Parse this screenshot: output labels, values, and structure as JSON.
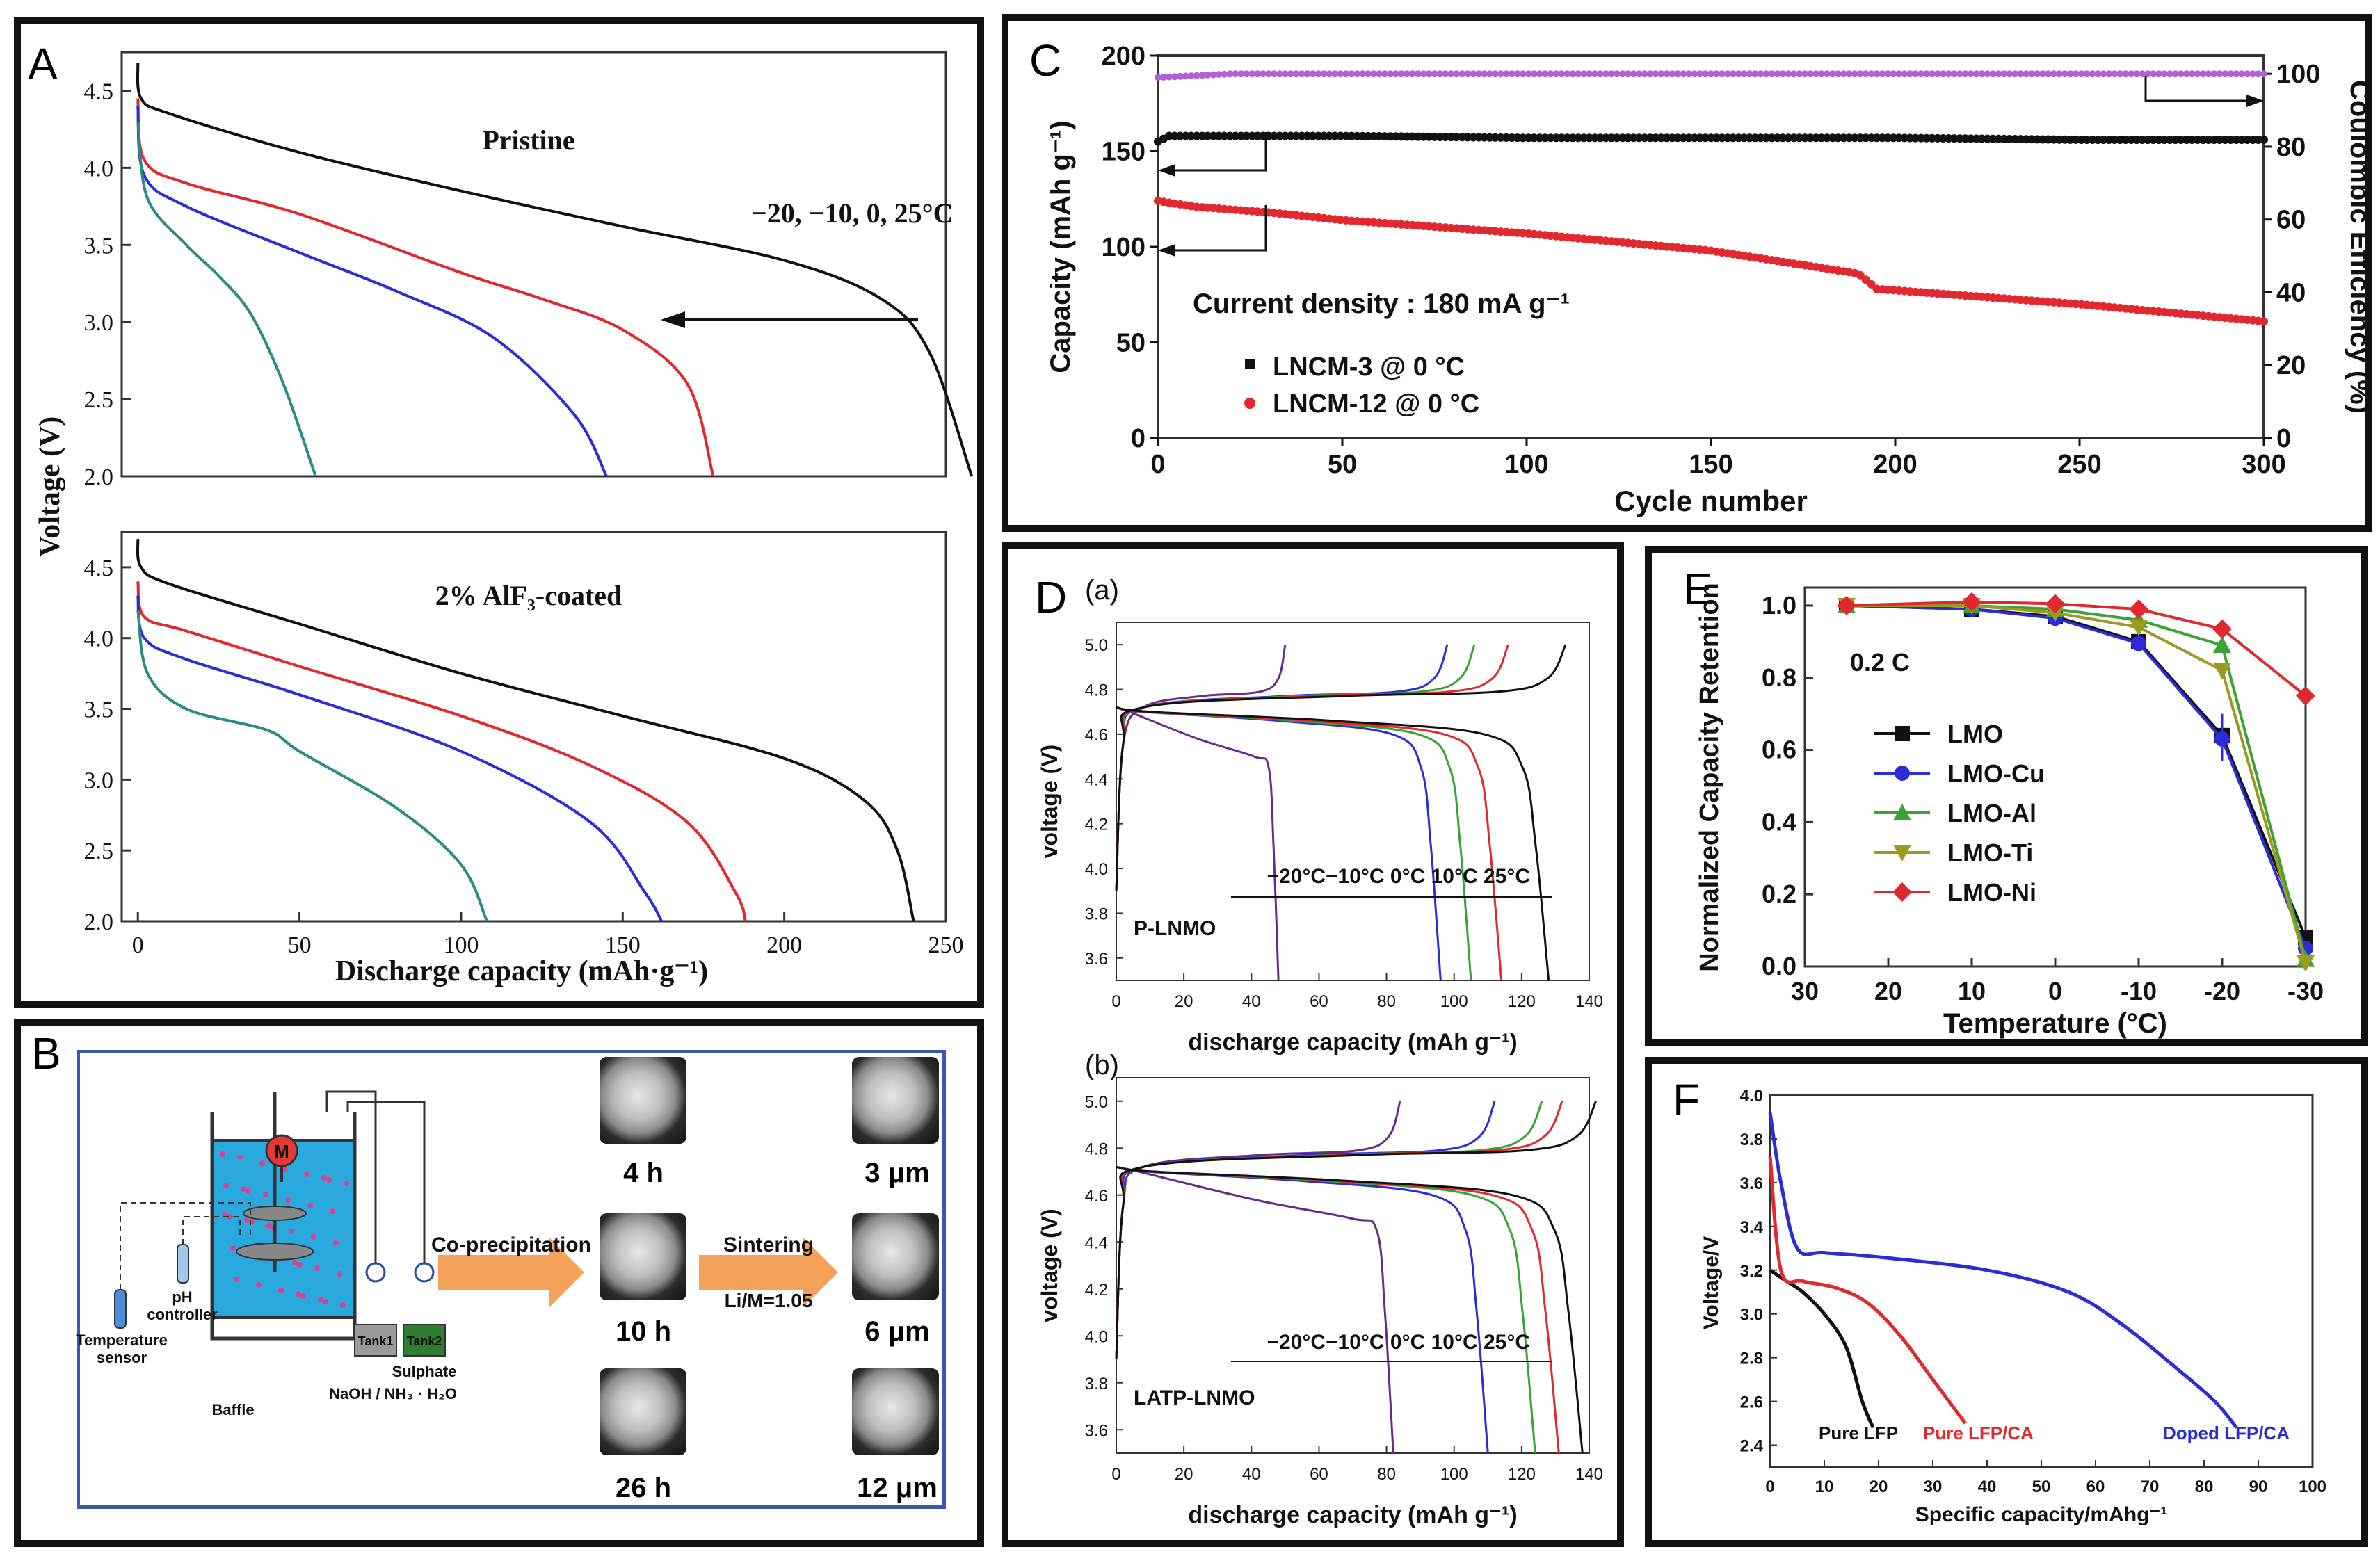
{
  "panels": {
    "A": "A",
    "B": "B",
    "C": "C",
    "D": "D",
    "E": "E",
    "F": "F"
  },
  "colors": {
    "black": "#111111",
    "red": "#e0282e",
    "blue": "#2b2bd9",
    "teal": "#2a8a84",
    "green": "#3aa335",
    "olive": "#9a9a1e",
    "purple": "#6a2a8a",
    "orange": "#f4a15a",
    "lavender": "#b260d6"
  },
  "chart_data": [
    {
      "id": "A-top",
      "type": "line",
      "title": "Pristine",
      "annotation": "−20, −10, 0, 25°C",
      "xlabel": "Discharge capacity (mAh·g⁻¹)",
      "ylabel": "Voltage (V)",
      "xlim": [
        -5,
        250
      ],
      "ylim": [
        2.0,
        4.75
      ],
      "yticks": [
        "2.0",
        "2.5",
        "3.0",
        "3.5",
        "4.0",
        "4.5"
      ],
      "series": [
        {
          "name": "25°C",
          "color": "#111111",
          "points": [
            [
              0,
              4.68
            ],
            [
              1,
              4.45
            ],
            [
              10,
              4.35
            ],
            [
              50,
              4.1
            ],
            [
              100,
              3.85
            ],
            [
              150,
              3.62
            ],
            [
              200,
              3.4
            ],
            [
              230,
              3.15
            ],
            [
              245,
              2.8
            ],
            [
              258,
              2.0
            ]
          ]
        },
        {
          "name": "0°C",
          "color": "#e0282e",
          "points": [
            [
              0,
              4.45
            ],
            [
              2,
              4.05
            ],
            [
              15,
              3.9
            ],
            [
              50,
              3.7
            ],
            [
              100,
              3.32
            ],
            [
              125,
              3.15
            ],
            [
              150,
              2.95
            ],
            [
              170,
              2.6
            ],
            [
              178,
              2.0
            ]
          ]
        },
        {
          "name": "-10°C",
          "color": "#2b2bd9",
          "points": [
            [
              0,
              4.4
            ],
            [
              2,
              3.95
            ],
            [
              15,
              3.75
            ],
            [
              50,
              3.45
            ],
            [
              80,
              3.2
            ],
            [
              110,
              2.9
            ],
            [
              135,
              2.4
            ],
            [
              145,
              2.0
            ]
          ]
        },
        {
          "name": "-20°C",
          "color": "#2a8a84",
          "points": [
            [
              0,
              4.3
            ],
            [
              3,
              3.8
            ],
            [
              15,
              3.5
            ],
            [
              25,
              3.3
            ],
            [
              35,
              3.05
            ],
            [
              45,
              2.6
            ],
            [
              55,
              2.0
            ]
          ]
        }
      ]
    },
    {
      "id": "A-bottom",
      "type": "line",
      "title": "2% AlF₃-coated",
      "xlabel": "Discharge capacity (mAh·g⁻¹)",
      "ylabel": "Voltage (V)",
      "xlim": [
        -5,
        250
      ],
      "ylim": [
        2.0,
        4.75
      ],
      "xticks": [
        "0",
        "50",
        "100",
        "150",
        "200",
        "250"
      ],
      "yticks": [
        "2.0",
        "2.5",
        "3.0",
        "3.5",
        "4.0",
        "4.5"
      ],
      "series": [
        {
          "name": "25°C",
          "color": "#111111",
          "points": [
            [
              0,
              4.7
            ],
            [
              1,
              4.5
            ],
            [
              10,
              4.38
            ],
            [
              50,
              4.1
            ],
            [
              100,
              3.75
            ],
            [
              150,
              3.45
            ],
            [
              200,
              3.15
            ],
            [
              225,
              2.85
            ],
            [
              235,
              2.5
            ],
            [
              240,
              2.0
            ]
          ]
        },
        {
          "name": "0°C",
          "color": "#e0282e",
          "points": [
            [
              0,
              4.4
            ],
            [
              2,
              4.15
            ],
            [
              15,
              4.05
            ],
            [
              50,
              3.8
            ],
            [
              100,
              3.45
            ],
            [
              140,
              3.1
            ],
            [
              170,
              2.7
            ],
            [
              185,
              2.2
            ],
            [
              188,
              2.0
            ]
          ]
        },
        {
          "name": "-10°C",
          "color": "#2b2bd9",
          "points": [
            [
              0,
              4.3
            ],
            [
              2,
              4.0
            ],
            [
              15,
              3.85
            ],
            [
              50,
              3.6
            ],
            [
              100,
              3.2
            ],
            [
              140,
              2.7
            ],
            [
              157,
              2.2
            ],
            [
              162,
              2.0
            ]
          ]
        },
        {
          "name": "-20°C",
          "color": "#2a8a84",
          "points": [
            [
              0,
              4.2
            ],
            [
              3,
              3.75
            ],
            [
              15,
              3.5
            ],
            [
              40,
              3.35
            ],
            [
              50,
              3.2
            ],
            [
              80,
              2.8
            ],
            [
              100,
              2.4
            ],
            [
              108,
              2.0
            ]
          ]
        }
      ]
    },
    {
      "id": "C",
      "type": "scatter",
      "xlabel": "Cycle number",
      "ylabel": "Capacity (mAh g⁻¹)",
      "y2label": "Coulombic Efficiency (%)",
      "annotation": "Current density : 180 mA g⁻¹",
      "xlim": [
        0,
        300
      ],
      "ylim": [
        0,
        200
      ],
      "y2lim": [
        0,
        105
      ],
      "xticks": [
        "0",
        "50",
        "100",
        "150",
        "200",
        "250",
        "300"
      ],
      "yticks": [
        "0",
        "50",
        "100",
        "150",
        "200"
      ],
      "y2ticks": [
        "0",
        "20",
        "40",
        "60",
        "80",
        "100"
      ],
      "legend": [
        "LNCM-3  @ 0 °C",
        "LNCM-12 @ 0 °C"
      ],
      "series": [
        {
          "name": "LNCM-3 @ 0 °C",
          "color": "#111111",
          "points": [
            [
              0,
              155
            ],
            [
              3,
              158
            ],
            [
              50,
              158
            ],
            [
              100,
              157
            ],
            [
              150,
              157
            ],
            [
              200,
              157
            ],
            [
              250,
              156
            ],
            [
              300,
              156
            ]
          ]
        },
        {
          "name": "LNCM-12 @ 0 °C",
          "color": "#e0282e",
          "points": [
            [
              0,
              124
            ],
            [
              10,
              121
            ],
            [
              30,
              118
            ],
            [
              50,
              114
            ],
            [
              100,
              107
            ],
            [
              150,
              98
            ],
            [
              190,
              86
            ],
            [
              195,
              78
            ],
            [
              250,
              70
            ],
            [
              300,
              61
            ]
          ]
        },
        {
          "name": "Coulombic efficiency",
          "color": "#b260d6",
          "points": [
            [
              0,
              99
            ],
            [
              20,
              100
            ],
            [
              100,
              100
            ],
            [
              200,
              100
            ],
            [
              300,
              100
            ]
          ]
        }
      ]
    },
    {
      "id": "D-a",
      "type": "line",
      "panel_sub": "(a)",
      "sample": "P-LNMO",
      "xlabel": "discharge capacity (mAh g⁻¹)",
      "ylabel": "voltage (V)",
      "xlim": [
        0,
        140
      ],
      "ylim": [
        3.5,
        5.1
      ],
      "xticks": [
        "0",
        "20",
        "40",
        "60",
        "80",
        "100",
        "120",
        "140"
      ],
      "yticks": [
        "3.6",
        "3.8",
        "4.0",
        "4.2",
        "4.4",
        "4.6",
        "4.8",
        "5.0"
      ],
      "temps": "−20°C−10°C 0°C 10°C  25°C",
      "endpoints": {
        "-20": 48,
        "-10": 96,
        "0": 105,
        "10": 114,
        "25": 128
      },
      "charge_ends": {
        "-20": 50,
        "-10": 98,
        "0": 106,
        "10": 116,
        "25": 133
      }
    },
    {
      "id": "D-b",
      "type": "line",
      "panel_sub": "(b)",
      "sample": "LATP-LNMO",
      "xlabel": "discharge capacity (mAh g⁻¹)",
      "ylabel": "voltage (V)",
      "xlim": [
        0,
        140
      ],
      "ylim": [
        3.5,
        5.1
      ],
      "xticks": [
        "0",
        "20",
        "40",
        "60",
        "80",
        "100",
        "120",
        "140"
      ],
      "yticks": [
        "3.6",
        "3.8",
        "4.0",
        "4.2",
        "4.4",
        "4.6",
        "4.8",
        "5.0"
      ],
      "temps": "−20°C−10°C 0°C 10°C 25°C",
      "endpoints": {
        "-20": 82,
        "-10": 110,
        "0": 124,
        "10": 131,
        "25": 138
      },
      "charge_ends": {
        "-20": 84,
        "-10": 112,
        "0": 126,
        "10": 132,
        "25": 142
      }
    },
    {
      "id": "E",
      "type": "line",
      "annotation": "0.2 C",
      "xlabel": "Temperature (°C)",
      "ylabel": "Normalized Capacity Retention",
      "xlim": [
        30,
        -30
      ],
      "ylim": [
        0,
        1.05
      ],
      "xticks": [
        "30",
        "20",
        "10",
        "0",
        "-10",
        "-20",
        "-30"
      ],
      "yticks": [
        "0.0",
        "0.2",
        "0.4",
        "0.6",
        "0.8",
        "1.0"
      ],
      "x": [
        25,
        10,
        0,
        -10,
        -20,
        -30
      ],
      "series": [
        {
          "name": "LMO",
          "color": "#111111",
          "marker": "square",
          "values": [
            1.0,
            0.99,
            0.97,
            0.9,
            0.64,
            0.08
          ]
        },
        {
          "name": "LMO-Cu",
          "color": "#2b2bd9",
          "marker": "circle",
          "values": [
            1.0,
            0.99,
            0.965,
            0.895,
            0.63,
            0.05
          ]
        },
        {
          "name": "LMO-Al",
          "color": "#3aa335",
          "marker": "triangle",
          "values": [
            1.0,
            1.0,
            0.99,
            0.96,
            0.89,
            0.02
          ]
        },
        {
          "name": "LMO-Ti",
          "color": "#9a9a1e",
          "marker": "triangle-down",
          "values": [
            1.0,
            1.0,
            0.98,
            0.94,
            0.82,
            0.01
          ]
        },
        {
          "name": "LMO-Ni",
          "color": "#e0282e",
          "marker": "diamond",
          "values": [
            1.0,
            1.01,
            1.005,
            0.99,
            0.935,
            0.75
          ]
        }
      ]
    },
    {
      "id": "F",
      "type": "line",
      "xlabel": "Specific capacity/mAhg⁻¹",
      "ylabel": "Voltage/V",
      "xlim": [
        0,
        100
      ],
      "ylim": [
        2.3,
        4.0
      ],
      "xticks": [
        "0",
        "10",
        "20",
        "30",
        "40",
        "50",
        "60",
        "70",
        "80",
        "90",
        "100"
      ],
      "yticks": [
        "2.4",
        "2.6",
        "2.8",
        "3.0",
        "3.2",
        "3.4",
        "3.6",
        "3.8",
        "4.0"
      ],
      "series": [
        {
          "name": "Pure LFP",
          "color": "#111111",
          "points": [
            [
              0,
              3.2
            ],
            [
              3,
              3.15
            ],
            [
              6,
              3.1
            ],
            [
              10,
              3.0
            ],
            [
              14,
              2.85
            ],
            [
              17,
              2.6
            ],
            [
              19,
              2.48
            ]
          ]
        },
        {
          "name": "Pure LFP/CA",
          "color": "#e0282e",
          "points": [
            [
              0,
              3.72
            ],
            [
              2,
              3.2
            ],
            [
              6,
              3.15
            ],
            [
              12,
              3.12
            ],
            [
              18,
              3.05
            ],
            [
              24,
              2.9
            ],
            [
              30,
              2.7
            ],
            [
              36,
              2.5
            ]
          ]
        },
        {
          "name": "Doped LFP/CA",
          "color": "#2b2bd9",
          "points": [
            [
              0,
              3.92
            ],
            [
              2,
              3.6
            ],
            [
              5,
              3.3
            ],
            [
              10,
              3.28
            ],
            [
              20,
              3.26
            ],
            [
              40,
              3.2
            ],
            [
              55,
              3.1
            ],
            [
              65,
              2.95
            ],
            [
              75,
              2.75
            ],
            [
              82,
              2.6
            ],
            [
              86,
              2.48
            ]
          ]
        }
      ]
    }
  ],
  "schematic": {
    "motor": "M",
    "ph": "pH\ncontroller",
    "ph1": "pH",
    "ph2": "controller",
    "temp1": "Temperature",
    "temp2": "sensor",
    "baffle": "Baffle",
    "tank1": "Tank1",
    "tank2": "Tank2",
    "sulphate": "Sulphate",
    "naoh": "NaOH / NH₃ · H₂O",
    "coprec": "Co-precipitation",
    "sinter": "Sintering",
    "ratio": "Li/M=1.05",
    "times": [
      "4 h",
      "10 h",
      "26 h"
    ],
    "sizes": [
      "3 μm",
      "6 μm",
      "12 μm"
    ]
  }
}
